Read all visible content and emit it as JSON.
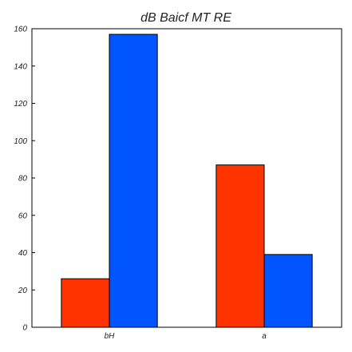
{
  "chart_data": {
    "type": "bar",
    "title": "dB Baicf MT RE",
    "xlabel": "",
    "ylabel": "",
    "categories": [
      "bH",
      "a"
    ],
    "series": [
      {
        "color": "#ff3300",
        "values": [
          26,
          87
        ]
      },
      {
        "color": "#0055ff",
        "values": [
          157,
          39
        ]
      }
    ],
    "ylim": [
      0,
      160
    ],
    "yticks": [
      0,
      20,
      40,
      60,
      80,
      100,
      120,
      140,
      160
    ],
    "grid": false,
    "legend": "none"
  }
}
